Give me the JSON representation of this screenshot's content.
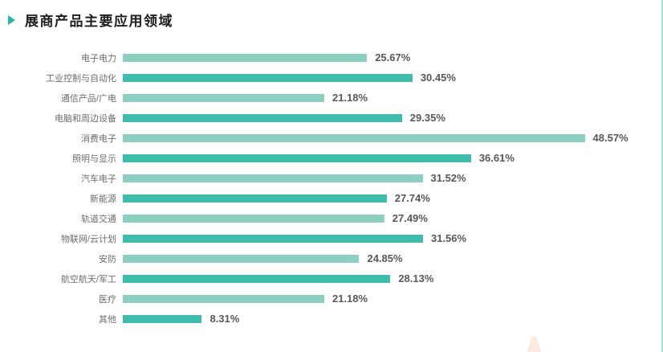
{
  "chart_data": {
    "type": "bar",
    "orientation": "horizontal",
    "title": "展商产品主要应用领域",
    "categories": [
      "电子电力",
      "工业控制与自动化",
      "通信产品/广电",
      "电脑和周边设备",
      "消费电子",
      "照明与显示",
      "汽车电子",
      "新能源",
      "轨道交通",
      "物联网/云计划",
      "安防",
      "航空航天/军工",
      "医疗",
      "其他"
    ],
    "values": [
      25.67,
      30.45,
      21.18,
      29.35,
      48.57,
      36.61,
      31.52,
      27.74,
      27.49,
      31.56,
      24.85,
      28.13,
      21.18,
      8.31
    ],
    "value_labels": [
      "25.67%",
      "30.45%",
      "21.18%",
      "29.35%",
      "48.57%",
      "36.61%",
      "31.52%",
      "27.74%",
      "27.49%",
      "31.56%",
      "24.85%",
      "28.13%",
      "21.18%",
      "8.31%"
    ],
    "xlim": [
      0,
      50
    ],
    "grid": false,
    "legend": false,
    "bar_style": "alternating-color",
    "xlabel": "",
    "ylabel": ""
  },
  "colors": {
    "bar_light": "#8CCFC0",
    "bar_dark": "#3FBCAB",
    "title_marker": "#2BB3A3",
    "title_text": "#1D1D1F",
    "category_label_text": "#6B6C6E",
    "value_label_text": "#57585A",
    "page_edge_line": "#A5E2D9",
    "bottom_decoration": "#FBEBE0"
  }
}
